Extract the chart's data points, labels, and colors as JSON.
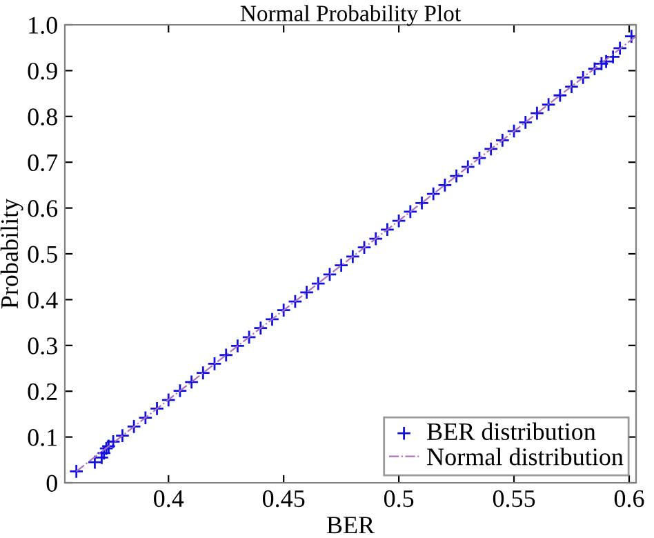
{
  "chart_data": {
    "type": "scatter",
    "title": "Normal Probability Plot",
    "xlabel": "BER",
    "ylabel": "Probability",
    "xlim": [
      0.355,
      0.603
    ],
    "ylim": [
      0,
      1.0
    ],
    "xticks": [
      0.4,
      0.45,
      0.5,
      0.55,
      0.6
    ],
    "yticks": [
      0,
      0.1,
      0.2,
      0.3,
      0.4,
      0.5,
      0.6,
      0.7,
      0.8,
      0.9,
      {
        "value": 1.0,
        "label": "1.0"
      }
    ],
    "grid": false,
    "legend": "bottom right",
    "series": [
      {
        "name": "BER distribution",
        "marker": "cross",
        "color": "#1010e0",
        "x": [
          0.36,
          0.368,
          0.371,
          0.372,
          0.373,
          0.374,
          0.376,
          0.38,
          0.385,
          0.39,
          0.395,
          0.4,
          0.405,
          0.41,
          0.415,
          0.42,
          0.425,
          0.43,
          0.435,
          0.44,
          0.445,
          0.45,
          0.455,
          0.46,
          0.465,
          0.47,
          0.475,
          0.48,
          0.485,
          0.49,
          0.495,
          0.5,
          0.505,
          0.51,
          0.515,
          0.52,
          0.525,
          0.53,
          0.535,
          0.54,
          0.545,
          0.55,
          0.555,
          0.56,
          0.565,
          0.57,
          0.575,
          0.58,
          0.585,
          0.588,
          0.59,
          0.593,
          0.596,
          0.601
        ],
        "values": [
          0.025,
          0.045,
          0.055,
          0.065,
          0.075,
          0.08,
          0.09,
          0.103,
          0.123,
          0.142,
          0.162,
          0.181,
          0.201,
          0.22,
          0.24,
          0.26,
          0.279,
          0.299,
          0.318,
          0.338,
          0.357,
          0.377,
          0.396,
          0.416,
          0.435,
          0.455,
          0.475,
          0.494,
          0.514,
          0.533,
          0.553,
          0.572,
          0.592,
          0.611,
          0.631,
          0.65,
          0.67,
          0.69,
          0.709,
          0.729,
          0.748,
          0.768,
          0.787,
          0.807,
          0.826,
          0.846,
          0.865,
          0.885,
          0.904,
          0.915,
          0.92,
          0.93,
          0.949,
          0.975
        ]
      },
      {
        "name": "Normal distribution",
        "type": "line",
        "line_style": "dashdot",
        "color": "#b070c0",
        "x": [
          0.36,
          0.603
        ],
        "values": [
          0.025,
          0.975
        ]
      }
    ]
  }
}
